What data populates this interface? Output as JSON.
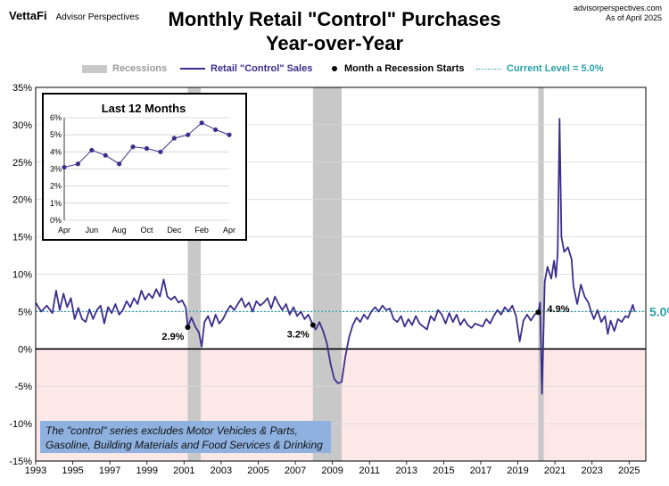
{
  "header": {
    "brand": "VettaFi",
    "brand_sub": "Advisor Perspectives",
    "source_line1": "advisorperspectives.com",
    "source_line2": "As of April 2025",
    "title_line1": "Monthly Retail \"Control\" Purchases",
    "title_line2": "Year-over-Year"
  },
  "legend": {
    "recessions": "Recessions",
    "series": "Retail \"Control\" Sales",
    "recession_start": "Month a Recession Starts",
    "current": "Current Level = 5.0%"
  },
  "note": "The \"control\" series excludes Motor Vehicles & Parts, Gasoline, Building Materials and Food Services & Drinking",
  "colors": {
    "line": "#3b2e8c",
    "recession": "#c8c8c8",
    "current": "#2a9fa8",
    "negative_fill": "#fde8e8",
    "note_box": "#8fb1e0"
  },
  "chart_data": {
    "type": "line",
    "title": "",
    "xlim": [
      1993,
      2025.9
    ],
    "ylim": [
      -15,
      35
    ],
    "y_ticks": [
      -15,
      -10,
      -5,
      0,
      5,
      10,
      15,
      20,
      25,
      30,
      35
    ],
    "y_tick_labels": [
      "-15%",
      "-10%",
      "-5%",
      "0%",
      "5%",
      "10%",
      "15%",
      "20%",
      "25%",
      "30%",
      "35%"
    ],
    "x_ticks": [
      1993,
      1995,
      1997,
      1999,
      2001,
      2003,
      2005,
      2007,
      2009,
      2011,
      2013,
      2015,
      2017,
      2019,
      2021,
      2023,
      2025
    ],
    "x_tick_labels": [
      "1993",
      "1995",
      "1997",
      "1999",
      "2001",
      "2003",
      "2005",
      "2007",
      "2009",
      "2011",
      "2013",
      "2015",
      "2017",
      "2019",
      "2021",
      "2023",
      "2025"
    ],
    "recessions": [
      [
        2001.2,
        2001.9
      ],
      [
        2007.95,
        2009.5
      ],
      [
        2020.1,
        2020.4
      ]
    ],
    "current_level": 5.0,
    "current_label": "5.0%",
    "recession_start_points": [
      {
        "x": 2001.2,
        "y": 2.9,
        "label": "2.9%"
      },
      {
        "x": 2007.95,
        "y": 3.2,
        "label": "3.2%"
      },
      {
        "x": 2020.1,
        "y": 4.9,
        "label": "4.9%"
      }
    ],
    "series": [
      {
        "name": "Retail \"Control\" Sales",
        "points": [
          [
            1993.0,
            6.2
          ],
          [
            1993.3,
            5.0
          ],
          [
            1993.6,
            5.8
          ],
          [
            1993.9,
            4.8
          ],
          [
            1994.1,
            7.8
          ],
          [
            1994.3,
            5.2
          ],
          [
            1994.5,
            7.4
          ],
          [
            1994.7,
            5.6
          ],
          [
            1994.9,
            6.8
          ],
          [
            1995.1,
            4.0
          ],
          [
            1995.3,
            5.5
          ],
          [
            1995.5,
            4.0
          ],
          [
            1995.7,
            3.6
          ],
          [
            1995.9,
            5.3
          ],
          [
            1996.1,
            4.0
          ],
          [
            1996.3,
            5.2
          ],
          [
            1996.5,
            5.8
          ],
          [
            1996.7,
            3.4
          ],
          [
            1996.9,
            5.6
          ],
          [
            1997.1,
            4.8
          ],
          [
            1997.3,
            6.0
          ],
          [
            1997.5,
            4.6
          ],
          [
            1997.7,
            5.2
          ],
          [
            1997.9,
            6.4
          ],
          [
            1998.1,
            5.6
          ],
          [
            1998.3,
            6.8
          ],
          [
            1998.5,
            6.0
          ],
          [
            1998.7,
            7.8
          ],
          [
            1998.9,
            6.6
          ],
          [
            1999.1,
            7.4
          ],
          [
            1999.3,
            6.8
          ],
          [
            1999.5,
            8.0
          ],
          [
            1999.7,
            7.0
          ],
          [
            1999.9,
            9.3
          ],
          [
            2000.1,
            7.0
          ],
          [
            2000.3,
            6.6
          ],
          [
            2000.5,
            7.0
          ],
          [
            2000.7,
            6.2
          ],
          [
            2000.9,
            6.5
          ],
          [
            2001.1,
            5.5
          ],
          [
            2001.2,
            2.9
          ],
          [
            2001.4,
            4.2
          ],
          [
            2001.6,
            3.0
          ],
          [
            2001.8,
            2.2
          ],
          [
            2001.95,
            0.3
          ],
          [
            2002.1,
            3.6
          ],
          [
            2002.3,
            4.4
          ],
          [
            2002.5,
            3.0
          ],
          [
            2002.7,
            4.6
          ],
          [
            2002.9,
            3.4
          ],
          [
            2003.1,
            4.0
          ],
          [
            2003.3,
            5.0
          ],
          [
            2003.5,
            5.8
          ],
          [
            2003.7,
            5.2
          ],
          [
            2003.9,
            6.0
          ],
          [
            2004.1,
            6.8
          ],
          [
            2004.3,
            5.6
          ],
          [
            2004.5,
            6.2
          ],
          [
            2004.7,
            5.0
          ],
          [
            2004.9,
            6.4
          ],
          [
            2005.1,
            5.8
          ],
          [
            2005.3,
            6.2
          ],
          [
            2005.5,
            6.8
          ],
          [
            2005.7,
            5.4
          ],
          [
            2005.9,
            7.0
          ],
          [
            2006.1,
            6.0
          ],
          [
            2006.3,
            5.2
          ],
          [
            2006.5,
            6.0
          ],
          [
            2006.7,
            4.6
          ],
          [
            2006.9,
            5.6
          ],
          [
            2007.1,
            4.4
          ],
          [
            2007.3,
            5.0
          ],
          [
            2007.5,
            4.0
          ],
          [
            2007.7,
            4.6
          ],
          [
            2007.95,
            3.2
          ],
          [
            2008.1,
            2.6
          ],
          [
            2008.3,
            3.6
          ],
          [
            2008.5,
            2.4
          ],
          [
            2008.7,
            0.8
          ],
          [
            2008.9,
            -2.0
          ],
          [
            2009.1,
            -4.0
          ],
          [
            2009.3,
            -4.6
          ],
          [
            2009.5,
            -4.4
          ],
          [
            2009.7,
            -1.0
          ],
          [
            2009.9,
            1.6
          ],
          [
            2010.1,
            3.2
          ],
          [
            2010.3,
            4.2
          ],
          [
            2010.5,
            3.6
          ],
          [
            2010.7,
            4.6
          ],
          [
            2010.9,
            4.0
          ],
          [
            2011.1,
            5.0
          ],
          [
            2011.3,
            5.6
          ],
          [
            2011.5,
            5.0
          ],
          [
            2011.7,
            5.8
          ],
          [
            2011.9,
            5.2
          ],
          [
            2012.1,
            5.4
          ],
          [
            2012.3,
            4.0
          ],
          [
            2012.5,
            3.6
          ],
          [
            2012.7,
            4.4
          ],
          [
            2012.9,
            3.0
          ],
          [
            2013.1,
            4.0
          ],
          [
            2013.3,
            3.2
          ],
          [
            2013.5,
            4.4
          ],
          [
            2013.7,
            3.4
          ],
          [
            2013.9,
            3.0
          ],
          [
            2014.1,
            2.6
          ],
          [
            2014.3,
            4.4
          ],
          [
            2014.5,
            3.8
          ],
          [
            2014.7,
            5.2
          ],
          [
            2014.9,
            4.6
          ],
          [
            2015.1,
            3.4
          ],
          [
            2015.3,
            4.8
          ],
          [
            2015.5,
            3.6
          ],
          [
            2015.7,
            4.6
          ],
          [
            2015.9,
            3.2
          ],
          [
            2016.1,
            4.0
          ],
          [
            2016.3,
            3.2
          ],
          [
            2016.5,
            2.8
          ],
          [
            2016.7,
            3.4
          ],
          [
            2016.9,
            3.2
          ],
          [
            2017.1,
            3.0
          ],
          [
            2017.3,
            4.0
          ],
          [
            2017.5,
            3.4
          ],
          [
            2017.7,
            4.4
          ],
          [
            2017.9,
            5.2
          ],
          [
            2018.1,
            4.6
          ],
          [
            2018.3,
            5.6
          ],
          [
            2018.5,
            5.0
          ],
          [
            2018.7,
            5.8
          ],
          [
            2018.9,
            4.4
          ],
          [
            2019.1,
            1.0
          ],
          [
            2019.3,
            3.8
          ],
          [
            2019.5,
            4.6
          ],
          [
            2019.7,
            3.8
          ],
          [
            2019.9,
            4.6
          ],
          [
            2020.1,
            4.9
          ],
          [
            2020.2,
            6.2
          ],
          [
            2020.3,
            -6.0
          ],
          [
            2020.45,
            9.0
          ],
          [
            2020.6,
            11.0
          ],
          [
            2020.8,
            9.4
          ],
          [
            2020.95,
            11.8
          ],
          [
            2021.05,
            9.6
          ],
          [
            2021.15,
            12.8
          ],
          [
            2021.25,
            30.8
          ],
          [
            2021.35,
            15.0
          ],
          [
            2021.5,
            13.0
          ],
          [
            2021.7,
            13.6
          ],
          [
            2021.9,
            12.0
          ],
          [
            2022.0,
            8.4
          ],
          [
            2022.2,
            6.0
          ],
          [
            2022.4,
            8.6
          ],
          [
            2022.6,
            7.0
          ],
          [
            2022.8,
            6.2
          ],
          [
            2022.95,
            5.0
          ],
          [
            2023.1,
            4.0
          ],
          [
            2023.3,
            5.2
          ],
          [
            2023.5,
            3.6
          ],
          [
            2023.7,
            4.4
          ],
          [
            2023.85,
            2.0
          ],
          [
            2024.0,
            3.8
          ],
          [
            2024.2,
            2.4
          ],
          [
            2024.4,
            4.0
          ],
          [
            2024.6,
            3.6
          ],
          [
            2024.8,
            4.4
          ],
          [
            2024.95,
            4.2
          ],
          [
            2025.1,
            5.2
          ],
          [
            2025.2,
            5.9
          ],
          [
            2025.3,
            5.0
          ]
        ]
      }
    ],
    "inset": {
      "title": "Last 12 Months",
      "ylim": [
        0,
        6
      ],
      "y_tick_labels": [
        "0%",
        "1%",
        "2%",
        "3%",
        "4%",
        "5%",
        "6%"
      ],
      "x_tick_labels": [
        "Apr",
        "Jun",
        "Aug",
        "Oct",
        "Dec",
        "Feb",
        "Apr"
      ],
      "values": [
        3.1,
        3.3,
        4.1,
        3.8,
        3.3,
        4.3,
        4.2,
        4.0,
        4.8,
        5.0,
        5.7,
        5.3,
        5.0
      ]
    }
  }
}
